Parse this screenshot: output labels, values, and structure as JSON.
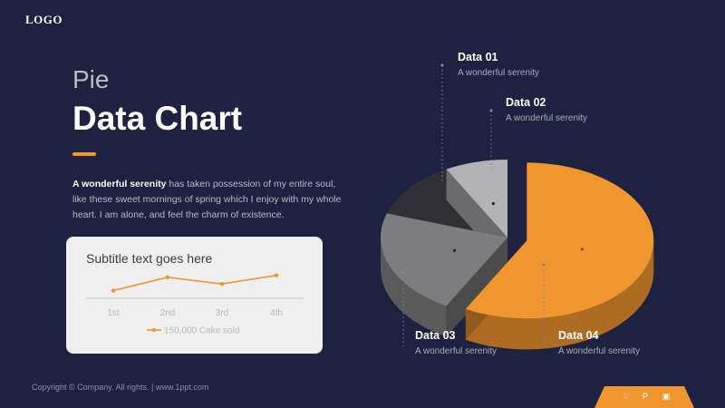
{
  "logo": "LOGO",
  "title_small": "Pie",
  "title_large": "Data Chart",
  "body": {
    "bold": "A wonderful serenity",
    "rest": " has taken possession of my entire soul, like these sweet mornings of spring which I enjoy with my whole heart. I am alone, and feel the charm of existence."
  },
  "card": {
    "subtitle": "Subtitle text goes here",
    "line_chart": {
      "type": "line",
      "categories": [
        "1st",
        "2nd",
        "3rd",
        "4th"
      ],
      "series": [
        {
          "name": "150,000 Cake sold",
          "values": [
            1.0,
            2.4,
            1.7,
            2.6
          ]
        }
      ],
      "color": "#f0962e"
    }
  },
  "chart_data": {
    "type": "pie",
    "labels": [
      "Data 01",
      "Data 02",
      "Data 03",
      "Data 04"
    ],
    "values": [
      12,
      8,
      22,
      58
    ],
    "colors": [
      "#2f2f35",
      "#b3b3b5",
      "#7d7d7f",
      "#f0962e"
    ],
    "exploded": "Data 04",
    "annotations": [
      {
        "label": "Data 01",
        "text": "A wonderful serenity"
      },
      {
        "label": "Data 02",
        "text": "A wonderful serenity"
      },
      {
        "label": "Data 03",
        "text": "A wonderful serenity"
      },
      {
        "label": "Data 04",
        "text": "A wonderful serenity"
      }
    ]
  },
  "footer": {
    "copyright": "Copyright © Company. All rights. | www.1ppt.com",
    "icons": [
      "heart-icon",
      "paypal-icon",
      "chart-icon"
    ]
  }
}
